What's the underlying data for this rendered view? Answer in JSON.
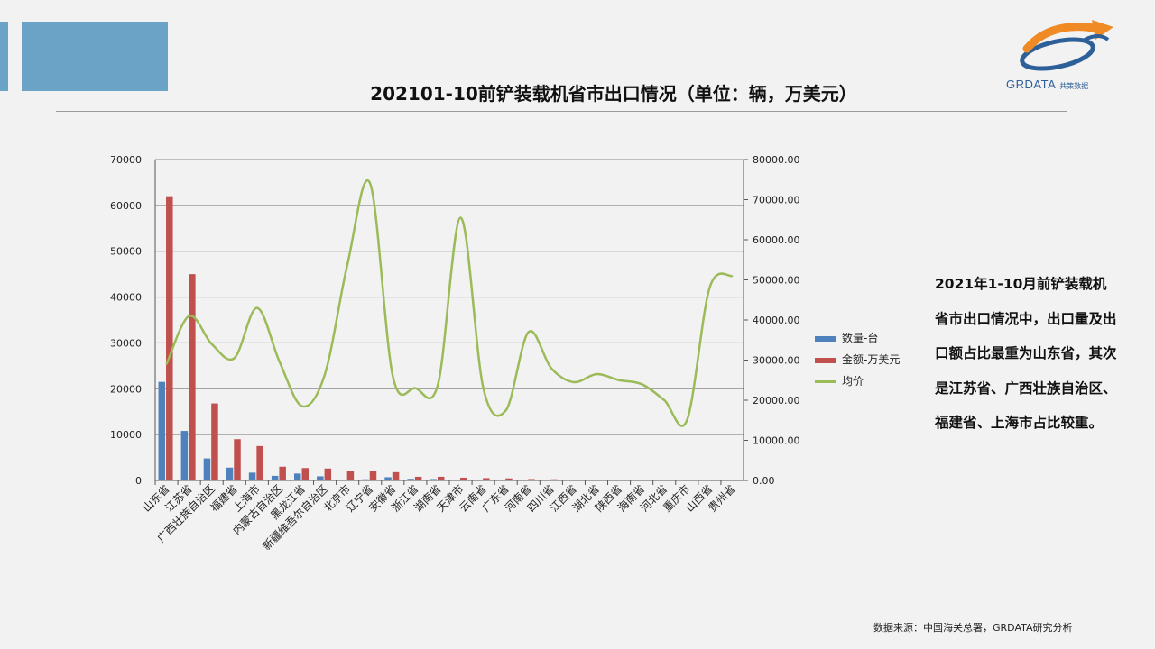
{
  "header": {
    "title": "202101-10前铲装载机省市出口情况（单位：辆，万美元）",
    "logo_text": "GRDATA",
    "logo_sub": "共策数据"
  },
  "colors": {
    "accent": "#6aa3c6",
    "bar_qty": "#4f81bd",
    "bar_amt": "#c0504d",
    "line_avg": "#9bbb59"
  },
  "description": "2021年1-10月前铲装载机省市出口情况中，出口量及出口额占比最重为山东省，其次是江苏省、广西壮族自治区、福建省、上海市占比较重。",
  "source": "数据来源：中国海关总署，GRDATA研究分析",
  "chart_data": {
    "type": "bar",
    "categories": [
      "山东省",
      "江苏省",
      "广西壮族自治区",
      "福建省",
      "上海市",
      "内蒙古自治区",
      "黑龙江省",
      "新疆维吾尔自治区",
      "北京市",
      "辽宁省",
      "安徽省",
      "浙江省",
      "湖南省",
      "天津市",
      "云南省",
      "广东省",
      "河南省",
      "四川省",
      "江西省",
      "湖北省",
      "陕西省",
      "海南省",
      "河北省",
      "重庆市",
      "山西省",
      "贵州省"
    ],
    "series": [
      {
        "name": "数量-台",
        "type": "bar",
        "axis": "left",
        "values": [
          21500,
          10800,
          4800,
          2800,
          1700,
          1000,
          1500,
          900,
          150,
          250,
          700,
          350,
          300,
          100,
          80,
          200,
          120,
          120,
          60,
          40,
          40,
          40,
          30,
          20,
          10,
          10
        ]
      },
      {
        "name": "金额-万美元",
        "type": "bar",
        "axis": "left",
        "values": [
          62000,
          45000,
          16800,
          9000,
          7500,
          3000,
          2700,
          2600,
          2000,
          2000,
          1800,
          800,
          800,
          600,
          500,
          450,
          300,
          250,
          100,
          80,
          60,
          50,
          40,
          30,
          20,
          20
        ]
      },
      {
        "name": "均价",
        "type": "line",
        "axis": "right",
        "values": [
          29000,
          41000,
          34000,
          30500,
          43000,
          29500,
          18500,
          26500,
          54000,
          74000,
          26000,
          23000,
          24000,
          65500,
          23000,
          17500,
          37000,
          28000,
          24500,
          26500,
          25000,
          24000,
          20000,
          15000,
          48000,
          51000
        ]
      }
    ],
    "y_left": {
      "min": 0,
      "max": 70000,
      "step": 10000,
      "ticks": [
        "0",
        "10000",
        "20000",
        "30000",
        "40000",
        "50000",
        "60000",
        "70000"
      ]
    },
    "y_right": {
      "min": 0,
      "max": 80000,
      "step": 10000,
      "ticks": [
        "0.00",
        "10000.00",
        "20000.00",
        "30000.00",
        "40000.00",
        "50000.00",
        "60000.00",
        "70000.00",
        "80000.00"
      ]
    },
    "grid": true,
    "legend_position": "right"
  }
}
